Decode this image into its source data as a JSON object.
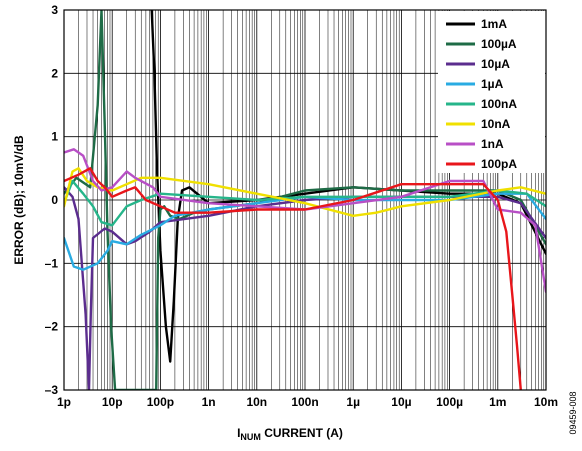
{
  "figure_id": "09459-008",
  "chart_data": {
    "type": "line",
    "xlabel_main": "I",
    "xlabel_sub": "NUM",
    "xlabel_rest": " CURRENT (A)",
    "ylabel": "ERROR (dB); 10mV/dB",
    "x_scale": "log",
    "xlim": [
      1e-12,
      0.01
    ],
    "ylim": [
      -3,
      3
    ],
    "grid": true,
    "legend_position": "top-right",
    "x_ticks": [
      {
        "value": 1e-12,
        "label": "1p"
      },
      {
        "value": 1e-11,
        "label": "10p"
      },
      {
        "value": 1e-10,
        "label": "100p"
      },
      {
        "value": 1e-09,
        "label": "1n"
      },
      {
        "value": 1e-08,
        "label": "10n"
      },
      {
        "value": 1e-07,
        "label": "100n"
      },
      {
        "value": 1e-06,
        "label": "1µ"
      },
      {
        "value": 1e-05,
        "label": "10µ"
      },
      {
        "value": 0.0001,
        "label": "100µ"
      },
      {
        "value": 0.001,
        "label": "1m"
      },
      {
        "value": 0.01,
        "label": "10m"
      }
    ],
    "y_ticks": [
      {
        "value": 3,
        "label": "3"
      },
      {
        "value": 2,
        "label": "2"
      },
      {
        "value": 1,
        "label": "1"
      },
      {
        "value": 0,
        "label": "0"
      },
      {
        "value": -1,
        "label": "–1"
      },
      {
        "value": -2,
        "label": "–2"
      },
      {
        "value": -3,
        "label": "–3"
      }
    ],
    "series": [
      {
        "name": "1mA",
        "color": "#000000",
        "points": [
          [
            6.6e-11,
            3
          ],
          [
            7.5e-11,
            2
          ],
          [
            8.5e-11,
            0.5
          ],
          [
            1e-10,
            -0.8
          ],
          [
            1.3e-10,
            -2
          ],
          [
            1.6e-10,
            -2.55
          ],
          [
            1.9e-10,
            -1.6
          ],
          [
            2.3e-10,
            -0.3
          ],
          [
            2.8e-10,
            0.15
          ],
          [
            4e-10,
            0.2
          ],
          [
            1e-09,
            -0.05
          ],
          [
            1e-08,
            0
          ],
          [
            1e-07,
            0.1
          ],
          [
            1e-06,
            0.2
          ],
          [
            1e-05,
            0.15
          ],
          [
            0.0001,
            0.1
          ],
          [
            0.001,
            0.1
          ],
          [
            0.003,
            -0.05
          ],
          [
            0.01,
            -0.85
          ]
        ]
      },
      {
        "name": "100µA",
        "color": "#1e6b46",
        "points": [
          [
            1e-12,
            0.1
          ],
          [
            1.8e-12,
            0.35
          ],
          [
            3.5e-12,
            0.2
          ],
          [
            5e-12,
            1.5
          ],
          [
            6e-12,
            3
          ],
          [
            7e-12,
            1.2
          ],
          [
            8e-12,
            -0.5
          ],
          [
            9.5e-12,
            -2
          ],
          [
            1.15e-11,
            -3
          ],
          [
            8.2e-11,
            -3
          ],
          [
            9e-11,
            -0.6
          ],
          [
            1e-10,
            -0.15
          ],
          [
            1.2e-10,
            -0.1
          ],
          [
            1.6e-10,
            -0.25
          ],
          [
            2.5e-10,
            -0.3
          ],
          [
            5e-10,
            -0.2
          ],
          [
            1e-09,
            -0.15
          ],
          [
            1e-08,
            -0.05
          ],
          [
            1e-07,
            0.15
          ],
          [
            1e-06,
            0.2
          ],
          [
            1e-05,
            0.15
          ],
          [
            0.0001,
            0.15
          ],
          [
            0.001,
            0.15
          ],
          [
            0.003,
            0
          ],
          [
            0.01,
            -0.7
          ]
        ]
      },
      {
        "name": "10µA",
        "color": "#5b2d8e",
        "points": [
          [
            1e-12,
            0.2
          ],
          [
            1.5e-12,
            0.05
          ],
          [
            2e-12,
            -0.3
          ],
          [
            2.8e-12,
            -1.8
          ],
          [
            3.3e-12,
            -3
          ],
          [
            3.6e-12,
            -1.8
          ],
          [
            4e-12,
            -0.6
          ],
          [
            7e-12,
            -0.45
          ],
          [
            1e-11,
            -0.5
          ],
          [
            2e-11,
            -0.7
          ],
          [
            3e-11,
            -0.65
          ],
          [
            6e-11,
            -0.5
          ],
          [
            1e-10,
            -0.35
          ],
          [
            1e-09,
            -0.25
          ],
          [
            1e-08,
            -0.1
          ],
          [
            1e-07,
            0
          ],
          [
            1e-06,
            0.05
          ],
          [
            1e-05,
            0.05
          ],
          [
            0.0001,
            0.05
          ],
          [
            0.001,
            0.05
          ],
          [
            0.003,
            -0.05
          ],
          [
            0.01,
            -0.6
          ]
        ]
      },
      {
        "name": "1µA",
        "color": "#29abe2",
        "points": [
          [
            1e-12,
            -0.6
          ],
          [
            1.6e-12,
            -1.05
          ],
          [
            2.5e-12,
            -1.1
          ],
          [
            5e-12,
            -1
          ],
          [
            8e-12,
            -0.8
          ],
          [
            1e-11,
            -0.65
          ],
          [
            2e-11,
            -0.7
          ],
          [
            4e-11,
            -0.55
          ],
          [
            1e-10,
            -0.4
          ],
          [
            2e-10,
            -0.25
          ],
          [
            1e-09,
            -0.15
          ],
          [
            1e-08,
            -0.05
          ],
          [
            1e-07,
            0.05
          ],
          [
            1e-06,
            0
          ],
          [
            1e-05,
            0
          ],
          [
            0.0001,
            0
          ],
          [
            0.001,
            0.1
          ],
          [
            0.004,
            0.1
          ],
          [
            0.01,
            -0.3
          ]
        ]
      },
      {
        "name": "100nA",
        "color": "#26b58a",
        "points": [
          [
            1e-12,
            -0.05
          ],
          [
            1.5e-12,
            0.3
          ],
          [
            2.5e-12,
            0.1
          ],
          [
            4e-12,
            -0.1
          ],
          [
            6e-12,
            -0.35
          ],
          [
            1e-11,
            -0.4
          ],
          [
            2e-11,
            -0.1
          ],
          [
            4e-11,
            0
          ],
          [
            1e-10,
            0.1
          ],
          [
            1e-09,
            0.05
          ],
          [
            1e-08,
            0
          ],
          [
            1e-07,
            0.05
          ],
          [
            1e-06,
            0.05
          ],
          [
            1e-05,
            0.05
          ],
          [
            0.0001,
            0.05
          ],
          [
            0.001,
            0.15
          ],
          [
            0.004,
            0.1
          ],
          [
            0.01,
            -0.1
          ]
        ]
      },
      {
        "name": "10nA",
        "color": "#f0e000",
        "points": [
          [
            1e-12,
            -0.1
          ],
          [
            1.5e-12,
            0.45
          ],
          [
            2e-12,
            0.5
          ],
          [
            3e-12,
            0.3
          ],
          [
            5e-12,
            0.2
          ],
          [
            1e-11,
            0.15
          ],
          [
            2e-11,
            0.25
          ],
          [
            4e-11,
            0.35
          ],
          [
            1e-10,
            0.35
          ],
          [
            1e-09,
            0.25
          ],
          [
            1e-08,
            0.1
          ],
          [
            1e-07,
            -0.05
          ],
          [
            1e-06,
            -0.25
          ],
          [
            3e-06,
            -0.2
          ],
          [
            1e-05,
            -0.1
          ],
          [
            0.0001,
            0
          ],
          [
            0.001,
            0.15
          ],
          [
            0.003,
            0.2
          ],
          [
            0.01,
            0.1
          ]
        ]
      },
      {
        "name": "1nA",
        "color": "#b84fc6",
        "points": [
          [
            1e-12,
            0.75
          ],
          [
            1.6e-12,
            0.8
          ],
          [
            2.5e-12,
            0.7
          ],
          [
            4e-12,
            0.3
          ],
          [
            6e-12,
            0.15
          ],
          [
            1e-11,
            0.2
          ],
          [
            2e-11,
            0.45
          ],
          [
            3e-11,
            0.35
          ],
          [
            7e-11,
            0.2
          ],
          [
            1e-10,
            0.05
          ],
          [
            1e-09,
            -0.05
          ],
          [
            1e-08,
            -0.1
          ],
          [
            1e-07,
            -0.15
          ],
          [
            1e-06,
            -0.05
          ],
          [
            1e-05,
            0.05
          ],
          [
            0.0001,
            0.3
          ],
          [
            0.0005,
            0.3
          ],
          [
            0.001,
            -0.15
          ],
          [
            0.003,
            -0.2
          ],
          [
            0.006,
            -0.4
          ],
          [
            0.01,
            -1.45
          ]
        ]
      },
      {
        "name": "100pA",
        "color": "#e8161b",
        "points": [
          [
            1e-12,
            0.3
          ],
          [
            2e-12,
            0.4
          ],
          [
            3.5e-12,
            0.5
          ],
          [
            5e-12,
            0.3
          ],
          [
            7e-12,
            0.2
          ],
          [
            1e-11,
            0.05
          ],
          [
            2e-11,
            0.15
          ],
          [
            3e-11,
            0.2
          ],
          [
            5e-11,
            0
          ],
          [
            1e-10,
            -0.1
          ],
          [
            2e-10,
            -0.2
          ],
          [
            1e-09,
            -0.2
          ],
          [
            1e-08,
            -0.15
          ],
          [
            1e-07,
            -0.15
          ],
          [
            1e-06,
            0
          ],
          [
            1e-05,
            0.25
          ],
          [
            0.0001,
            0.25
          ],
          [
            0.0005,
            0.25
          ],
          [
            0.001,
            0
          ],
          [
            0.0015,
            -0.5
          ],
          [
            0.002,
            -1.5
          ],
          [
            0.0025,
            -2.3
          ],
          [
            0.003,
            -3
          ]
        ]
      }
    ]
  }
}
